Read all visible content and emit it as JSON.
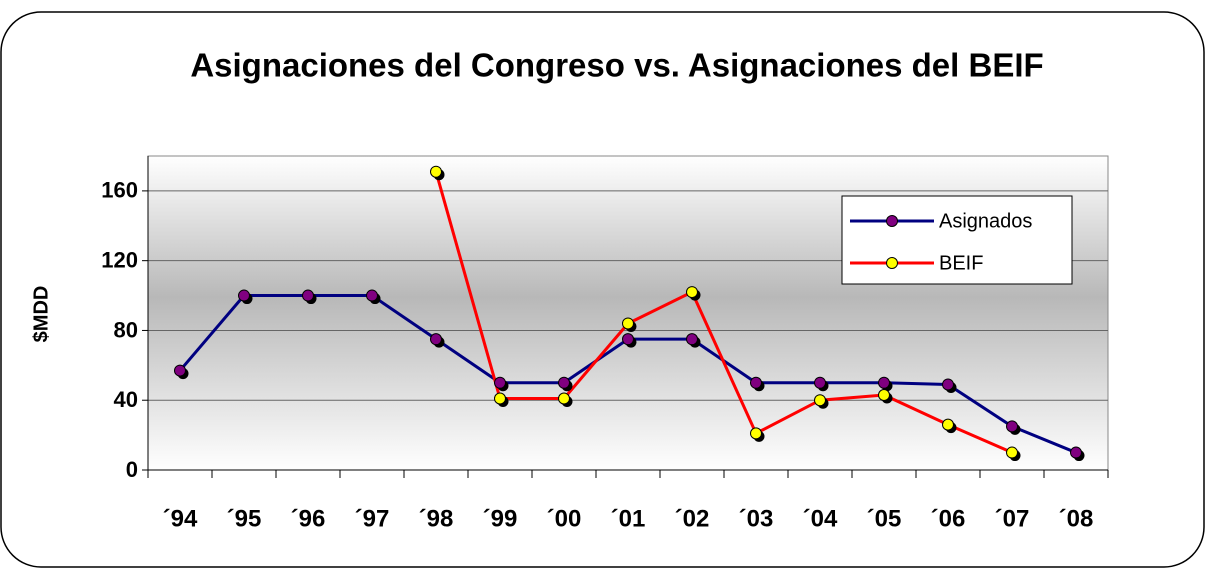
{
  "chart_data": {
    "type": "line",
    "title": "Asignaciones del Congreso vs. Asignaciones del BEIF",
    "y_label": "$MDD",
    "categories": [
      "´94",
      "´95",
      "´96",
      "´97",
      "´98",
      "´99",
      "´00",
      "´01",
      "´02",
      "´03",
      "´04",
      "´05",
      "´06",
      "´07",
      "´08"
    ],
    "series": [
      {
        "name": "Asignados",
        "color": "#000080",
        "marker_color": "#800080",
        "values": [
          57,
          100,
          100,
          100,
          75,
          50,
          50,
          75,
          75,
          50,
          50,
          50,
          49,
          25,
          10
        ]
      },
      {
        "name": "BEIF",
        "color": "#ff0000",
        "marker_color": "#ffff00",
        "values": [
          null,
          null,
          null,
          null,
          171,
          41,
          41,
          84,
          102,
          21,
          40,
          43,
          26,
          10,
          null
        ]
      }
    ],
    "ylim": [
      0,
      180
    ],
    "yticks": [
      0,
      40,
      80,
      120,
      160
    ],
    "grid": true,
    "legend": "upper right"
  }
}
